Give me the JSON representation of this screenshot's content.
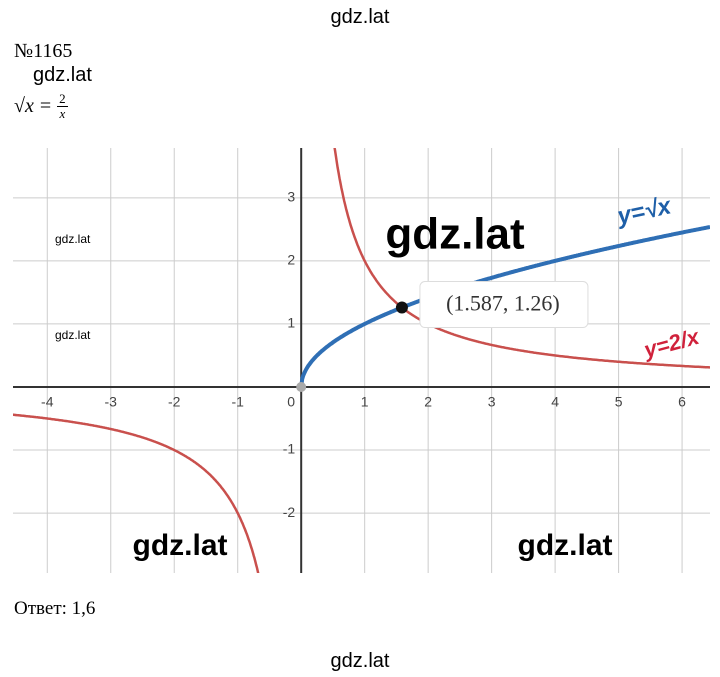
{
  "header": {
    "watermark": "gdz.lat",
    "number": "№1165",
    "watermark2": "gdz.lat"
  },
  "equation": {
    "left": "√x",
    "sign": "=",
    "numerator": "2",
    "denominator": "x"
  },
  "graph": {
    "xlim": [
      -4.54,
      6.44
    ],
    "ylim": [
      -2.95,
      3.79
    ],
    "xticks": [
      -4,
      -3,
      -2,
      -1,
      0,
      1,
      2,
      3,
      4,
      5,
      6
    ],
    "yticks": [
      -2,
      -1,
      1,
      2,
      3
    ],
    "point": {
      "x": 1.587,
      "y": 1.26,
      "label": "(1.587, 1.26)"
    },
    "curve_labels": [
      "y=√x",
      "y=2/x"
    ],
    "watermarks": [
      "gdz.lat",
      "gdz.lat",
      "gdz.lat",
      "gdz.lat",
      "gdz.lat"
    ]
  },
  "answer": "Ответ: 1,6",
  "footer": {
    "watermark": "gdz.lat"
  }
}
